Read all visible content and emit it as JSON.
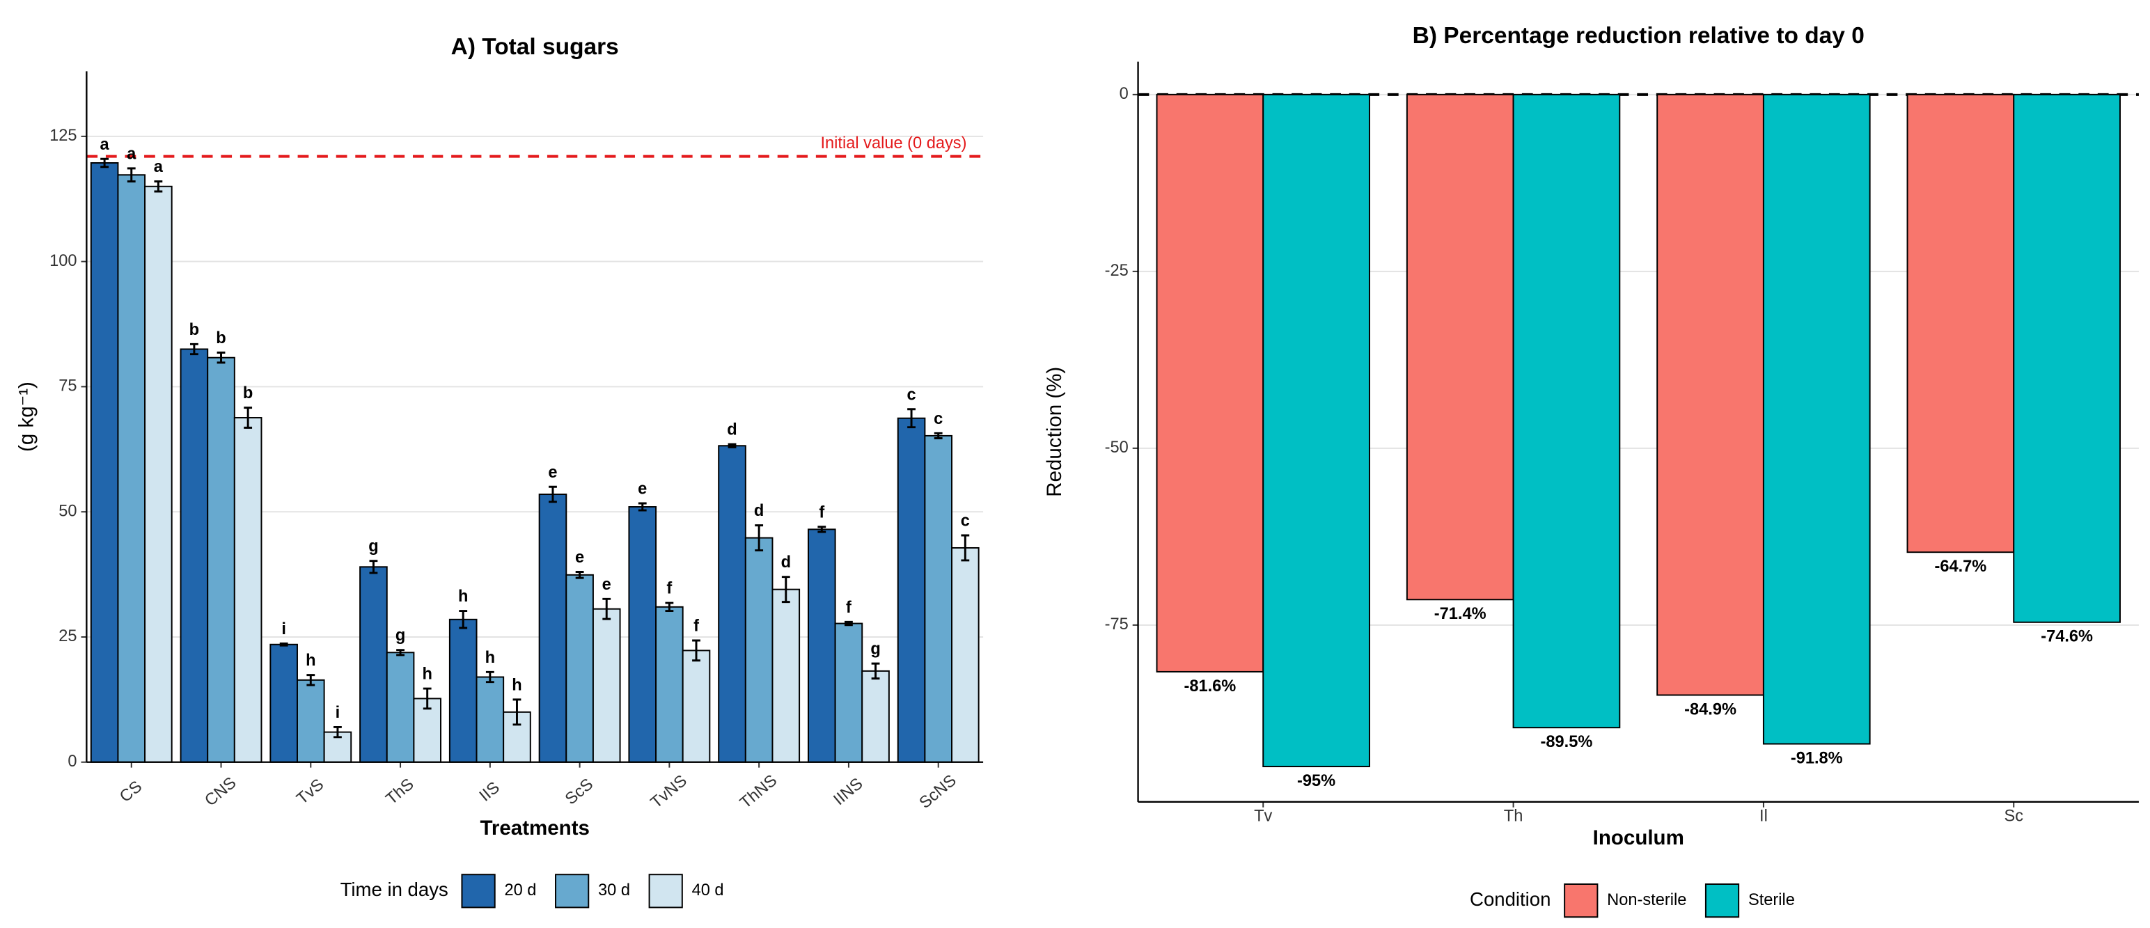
{
  "chart_data": [
    {
      "type": "grouped-bar",
      "title": "A) Total sugars",
      "x_label": "Treatments",
      "y_label": "(g kg⁻¹)",
      "categories": [
        "CS",
        "CNS",
        "TvS",
        "ThS",
        "IIS",
        "ScS",
        "TvNS",
        "ThNS",
        "IINS",
        "ScNS"
      ],
      "legend_title": "Time in days",
      "series": [
        {
          "name": "20 d",
          "color": "#2166ac",
          "values": [
            119.7,
            82.5,
            23.5,
            39,
            28.5,
            53.5,
            51,
            63.2,
            46.5,
            68.7
          ],
          "errors": [
            0.8,
            1,
            0.2,
            1.2,
            1.7,
            1.5,
            0.7,
            0.3,
            0.5,
            1.8
          ],
          "letters": [
            "a",
            "b",
            "i",
            "g",
            "h",
            "e",
            "e",
            "d",
            "f",
            "c"
          ]
        },
        {
          "name": "30 d",
          "color": "#67a9cf",
          "values": [
            117.3,
            80.8,
            16.4,
            21.9,
            17,
            37.4,
            31,
            44.8,
            27.7,
            65.2
          ],
          "errors": [
            1.3,
            1,
            1,
            0.5,
            1,
            0.6,
            0.8,
            2.5,
            0.3,
            0.5
          ],
          "letters": [
            "a",
            "b",
            "h",
            "g",
            "h",
            "e",
            "f",
            "d",
            "f",
            "c"
          ]
        },
        {
          "name": "40 d",
          "color": "#d1e5f0",
          "values": [
            115,
            68.8,
            6,
            12.7,
            10,
            30.6,
            22.3,
            34.5,
            18.2,
            42.8
          ],
          "errors": [
            1,
            2,
            1,
            2,
            2.5,
            2,
            2,
            2.5,
            1.5,
            2.5
          ],
          "letters": [
            "a",
            "b",
            "i",
            "h",
            "h",
            "e",
            "f",
            "d",
            "g",
            "c"
          ]
        }
      ],
      "reference_line": {
        "value": 121,
        "label": "Initial value (0 days)",
        "color": "#e41a1c"
      },
      "ylim": [
        0,
        138
      ],
      "yticks": [
        0,
        25,
        50,
        75,
        100,
        125
      ],
      "grid": true
    },
    {
      "type": "grouped-bar",
      "title": "B) Percentage reduction relative to day 0",
      "x_label": "Inoculum",
      "y_label": "Reduction (%)",
      "categories": [
        "Tv",
        "Th",
        "Il",
        "Sc"
      ],
      "legend_title": "Condition",
      "series": [
        {
          "name": "Non-sterile",
          "color": "#f8766d",
          "values": [
            -81.6,
            -71.4,
            -84.9,
            -64.7
          ],
          "value_labels": [
            "-81.6%",
            "-71.4%",
            "-84.9%",
            "-64.7%"
          ]
        },
        {
          "name": "Sterile",
          "color": "#00bfc4",
          "values": [
            -95,
            -89.5,
            -91.8,
            -74.6
          ],
          "value_labels": [
            "-95%",
            "-89.5%",
            "-91.8%",
            "-74.6%"
          ]
        }
      ],
      "reference_line": {
        "value": 0,
        "color": "#000000"
      },
      "ylim": [
        -100,
        4.65
      ],
      "yticks": [
        0,
        -25,
        -50,
        -75
      ],
      "grid": true
    }
  ]
}
